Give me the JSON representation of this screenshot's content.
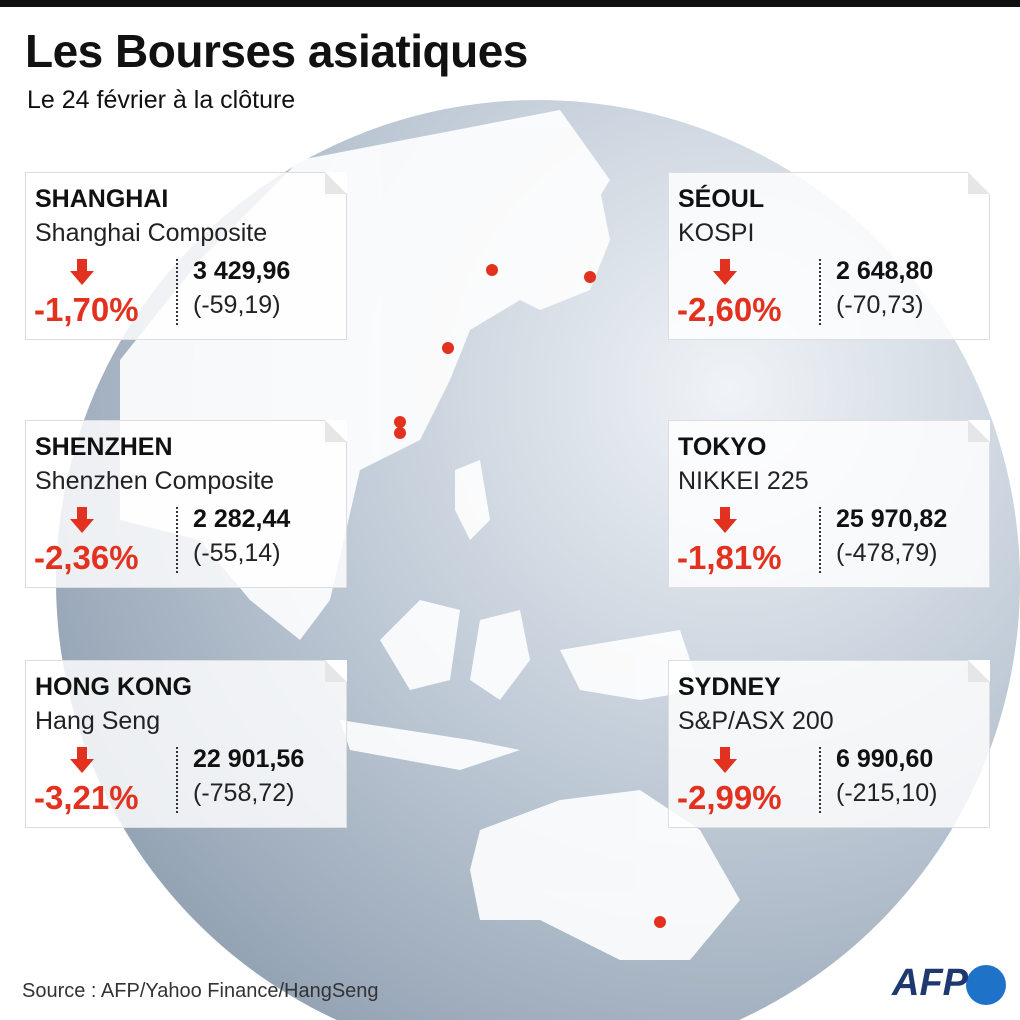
{
  "header": {
    "title": "Les Bourses asiatiques",
    "subtitle": "Le 24 février à la clôture"
  },
  "markets": [
    {
      "city": "SHANGHAI",
      "index": "Shanghai Composite",
      "change_pct": "-1,70%",
      "value": "3 429,96",
      "change": "(-59,19)"
    },
    {
      "city": "SHENZHEN",
      "index": "Shenzhen Composite",
      "change_pct": "-2,36%",
      "value": "2 282,44",
      "change": "(-55,14)"
    },
    {
      "city": "HONG KONG",
      "index": "Hang Seng",
      "change_pct": "-3,21%",
      "value": "22 901,56",
      "change": "(-758,72)"
    },
    {
      "city": "SÉOUL",
      "index": "KOSPI",
      "change_pct": "-2,60%",
      "value": "2 648,80",
      "change": "(-70,73)"
    },
    {
      "city": "TOKYO",
      "index": "NIKKEI 225",
      "change_pct": "-1,81%",
      "value": "25 970,82",
      "change": "(-478,79)"
    },
    {
      "city": "SYDNEY",
      "index": "S&P/ASX 200",
      "change_pct": "-2,99%",
      "value": "6 990,60",
      "change": "(-215,10)"
    }
  ],
  "footer": {
    "source": "Source : AFP/Yahoo Finance/HangSeng",
    "logo": "AFP"
  }
}
